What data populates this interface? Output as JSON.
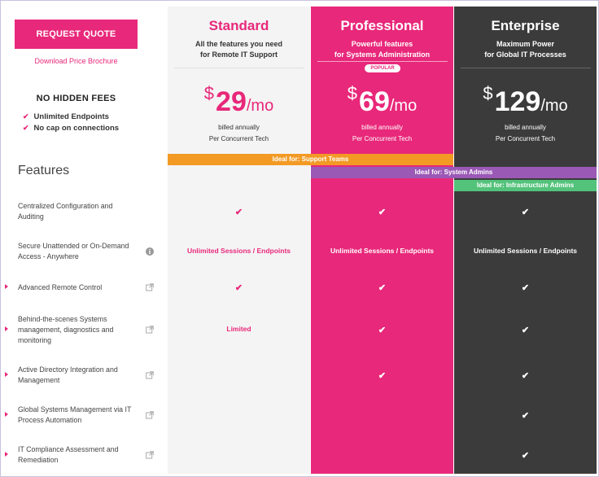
{
  "colors": {
    "pink": "#e8287a",
    "dark": "#3b3b3b",
    "light": "#f4f4f4",
    "orange": "#f39a24",
    "purple": "#9b59b6",
    "green": "#53c27b"
  },
  "sidebar": {
    "request_quote": "REQUEST QUOTE",
    "brochure": "Download Price Brochure",
    "no_fees": "NO HIDDEN FEES",
    "fees": [
      "Unlimited Endpoints",
      "No cap on connections"
    ],
    "features_title": "Features"
  },
  "plans": [
    {
      "name": "Standard",
      "sub1": "All the features you need",
      "sub2": "for Remote IT Support",
      "currency": "$",
      "price": "29",
      "per": "/mo",
      "bill1": "billed annually",
      "bill2": "Per Concurrent Tech"
    },
    {
      "name": "Professional",
      "sub1": "Powerful features",
      "sub2": "for Systems Administration",
      "currency": "$",
      "price": "69",
      "per": "/mo",
      "bill1": "billed annually",
      "bill2": "Per Concurrent Tech",
      "badge": "POPULAR"
    },
    {
      "name": "Enterprise",
      "sub1": "Maximum Power",
      "sub2": "for Global IT Processes",
      "currency": "$",
      "price": "129",
      "per": "/mo",
      "bill1": "billed annually",
      "bill2": "Per Concurrent Tech"
    }
  ],
  "ideal": {
    "support": "Ideal for: Support Teams",
    "sysadmin": "Ideal for: System Admins",
    "infra": "Ideal for: Infrastructure Admins"
  },
  "features": [
    {
      "label": "Centralized Configuration and Auditing",
      "icon": "none",
      "arrow": false,
      "std": "✔",
      "pro": "✔",
      "ent": "✔"
    },
    {
      "label": "Secure Unattended or On-Demand Access - Anywhere",
      "icon": "info-icon",
      "arrow": false,
      "std": "Unlimited Sessions / Endpoints",
      "pro": "Unlimited Sessions / Endpoints",
      "ent": "Unlimited Sessions / Endpoints"
    },
    {
      "label": "Advanced Remote Control",
      "icon": "external-link-icon",
      "arrow": true,
      "std": "✔",
      "pro": "✔",
      "ent": "✔"
    },
    {
      "label": "Behind-the-scenes Systems management, diagnostics and monitoring",
      "icon": "external-link-icon",
      "arrow": true,
      "std": "Limited",
      "pro": "✔",
      "ent": "✔"
    },
    {
      "label": "Active Directory Integration and Management",
      "icon": "external-link-icon",
      "arrow": true,
      "std": "",
      "pro": "✔",
      "ent": "✔"
    },
    {
      "label": "Global Systems Management via IT Process Automation",
      "icon": "external-link-icon",
      "arrow": true,
      "std": "",
      "pro": "",
      "ent": "✔"
    },
    {
      "label": "IT Compliance Assessment and Remediation",
      "icon": "external-link-icon",
      "arrow": true,
      "std": "",
      "pro": "",
      "ent": "✔"
    }
  ]
}
